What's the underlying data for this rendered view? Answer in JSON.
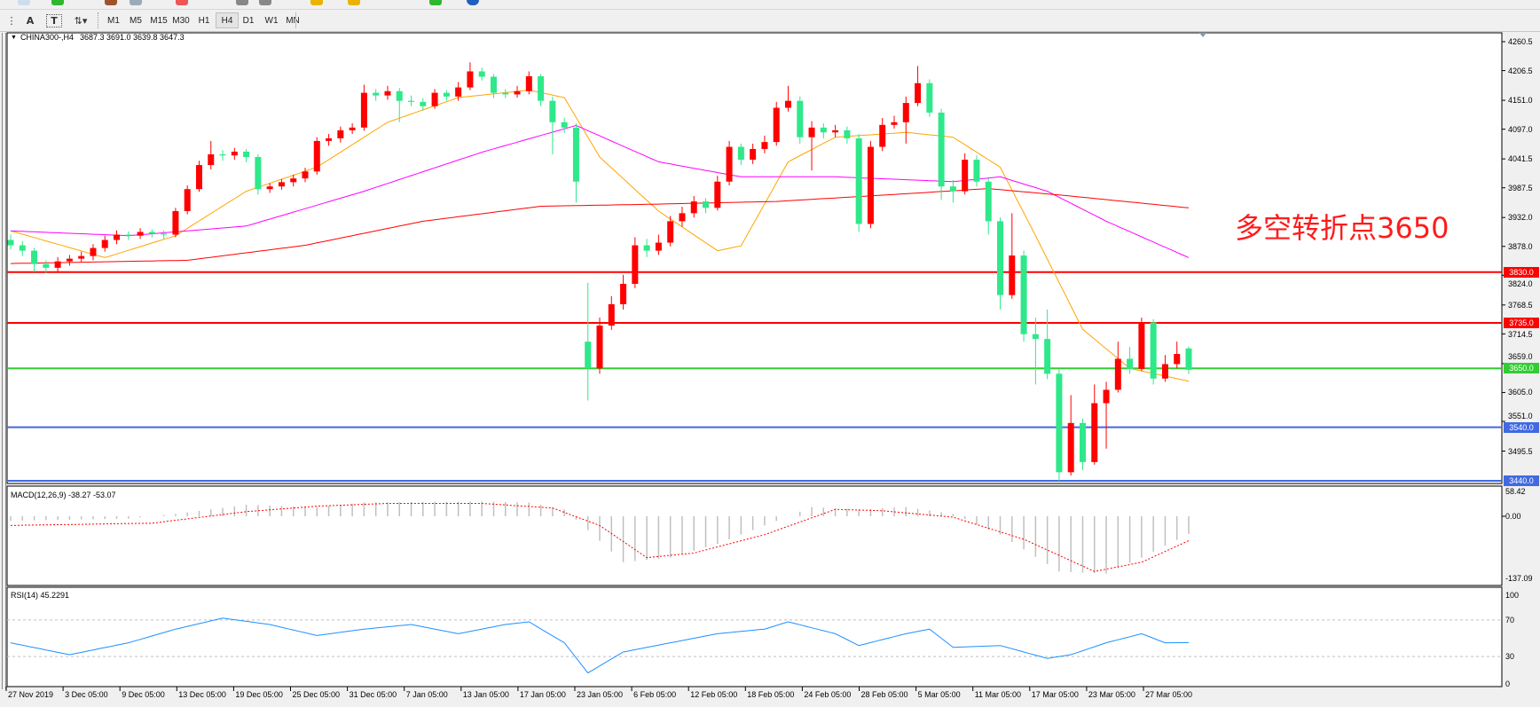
{
  "toolbar": {
    "tools": [
      {
        "name": "period-separator-icon",
        "glyph": "⋮"
      },
      {
        "name": "text-tool-icon",
        "glyph": "A"
      },
      {
        "name": "text-label-tool-icon",
        "glyph": "T"
      },
      {
        "name": "arrows-tool-icon",
        "glyph": "⇅▾"
      }
    ],
    "timeframes": [
      "M1",
      "M5",
      "M15",
      "M30",
      "H1",
      "H4",
      "D1",
      "W1",
      "MN"
    ],
    "active_timeframe": "H4"
  },
  "header": {
    "symbol": "CHINA300-,H4",
    "ohlc": "3687.3 3691.0 3639.8 3647.3"
  },
  "annotation": "多空转折点3650",
  "price_axis": [
    "4260.5",
    "4206.5",
    "4151.0",
    "4097.0",
    "4041.5",
    "3987.5",
    "3932.0",
    "3878.0",
    "3824.0",
    "3768.5",
    "3714.5",
    "3659.0",
    "3605.0",
    "3551.0",
    "3495.5"
  ],
  "levels": [
    {
      "label": "3830.0",
      "value": 3830,
      "color": "#ff0000"
    },
    {
      "label": "3735.0",
      "value": 3735,
      "color": "#ff0000"
    },
    {
      "label": "3650.0",
      "value": 3650,
      "color": "#32cd32"
    },
    {
      "label": "3540.0",
      "value": 3540,
      "color": "#4169e1"
    },
    {
      "label": "3440.0",
      "value": 3440,
      "color": "#4169e1"
    }
  ],
  "macd": {
    "label": "MACD(12,26,9) -38.27 -53.07",
    "axis": [
      "58.42",
      "0.00",
      "-137.09"
    ]
  },
  "rsi": {
    "label": "RSI(14) 45.2291",
    "axis": [
      "100",
      "70",
      "30",
      "0"
    ]
  },
  "time_axis": [
    "27 Nov 2019",
    "3 Dec 05:00",
    "9 Dec 05:00",
    "13 Dec 05:00",
    "19 Dec 05:00",
    "25 Dec 05:00",
    "31 Dec 05:00",
    "7 Jan 05:00",
    "13 Jan 05:00",
    "17 Jan 05:00",
    "23 Jan 05:00",
    "6 Feb 05:00",
    "12 Feb 05:00",
    "18 Feb 05:00",
    "24 Feb 05:00",
    "28 Feb 05:00",
    "5 Mar 05:00",
    "11 Mar 05:00",
    "17 Mar 05:00",
    "23 Mar 05:00",
    "27 Mar 05:00"
  ],
  "colors": {
    "bull": "#ff0000",
    "bear": "#2ee88a",
    "ma_fast": "#ffa500",
    "ma_mid": "#ff00ff",
    "ma_slow": "#ff0000",
    "rsi": "#1e90ff",
    "macd_hist": "#c0c0c0",
    "macd_signal": "#ff0000"
  },
  "chart_data": {
    "type": "candlestick",
    "price_range": [
      3440,
      4260.5
    ],
    "candles_ohlc": [
      [
        3890,
        3900,
        3872,
        3880
      ],
      [
        3880,
        3888,
        3860,
        3870
      ],
      [
        3870,
        3875,
        3830,
        3845
      ],
      [
        3845,
        3852,
        3828,
        3838
      ],
      [
        3838,
        3858,
        3830,
        3850
      ],
      [
        3850,
        3862,
        3842,
        3855
      ],
      [
        3855,
        3868,
        3848,
        3860
      ],
      [
        3860,
        3882,
        3852,
        3875
      ],
      [
        3875,
        3898,
        3868,
        3890
      ],
      [
        3890,
        3908,
        3882,
        3900
      ],
      [
        3900,
        3906,
        3890,
        3898
      ],
      [
        3898,
        3912,
        3892,
        3905
      ],
      [
        3905,
        3910,
        3895,
        3902
      ],
      [
        3902,
        3908,
        3892,
        3900
      ],
      [
        3900,
        3950,
        3895,
        3944
      ],
      [
        3944,
        3992,
        3938,
        3985
      ],
      [
        3985,
        4038,
        3980,
        4030
      ],
      [
        4030,
        4075,
        4022,
        4050
      ],
      [
        4050,
        4058,
        4038,
        4048
      ],
      [
        4048,
        4062,
        4040,
        4055
      ],
      [
        4055,
        4060,
        4035,
        4045
      ],
      [
        4045,
        4050,
        3975,
        3985
      ],
      [
        3985,
        3996,
        3978,
        3990
      ],
      [
        3990,
        4004,
        3984,
        3998
      ],
      [
        3998,
        4012,
        3990,
        4005
      ],
      [
        4005,
        4025,
        3998,
        4018
      ],
      [
        4018,
        4082,
        4012,
        4075
      ],
      [
        4075,
        4088,
        4066,
        4080
      ],
      [
        4080,
        4102,
        4072,
        4095
      ],
      [
        4095,
        4108,
        4088,
        4100
      ],
      [
        4100,
        4180,
        4094,
        4165
      ],
      [
        4165,
        4172,
        4150,
        4160
      ],
      [
        4160,
        4178,
        4152,
        4168
      ],
      [
        4168,
        4174,
        4110,
        4150
      ],
      [
        4150,
        4160,
        4140,
        4148
      ],
      [
        4148,
        4155,
        4132,
        4140
      ],
      [
        4140,
        4172,
        4135,
        4165
      ],
      [
        4165,
        4170,
        4150,
        4158
      ],
      [
        4158,
        4185,
        4150,
        4175
      ],
      [
        4175,
        4222,
        4170,
        4205
      ],
      [
        4205,
        4212,
        4188,
        4195
      ],
      [
        4195,
        4200,
        4155,
        4165
      ],
      [
        4165,
        4172,
        4155,
        4162
      ],
      [
        4162,
        4178,
        4156,
        4168
      ],
      [
        4168,
        4205,
        4162,
        4196
      ],
      [
        4196,
        4200,
        4140,
        4150
      ],
      [
        4150,
        4158,
        4050,
        4110
      ],
      [
        4110,
        4118,
        4090,
        4100
      ],
      [
        4100,
        4108,
        3960,
        3999
      ],
      [
        3700,
        3810,
        3590,
        3650
      ],
      [
        3650,
        3745,
        3640,
        3730
      ],
      [
        3730,
        3785,
        3722,
        3770
      ],
      [
        3770,
        3825,
        3760,
        3808
      ],
      [
        3808,
        3895,
        3800,
        3880
      ],
      [
        3880,
        3892,
        3858,
        3870
      ],
      [
        3870,
        3900,
        3862,
        3885
      ],
      [
        3885,
        3935,
        3878,
        3925
      ],
      [
        3925,
        3952,
        3915,
        3940
      ],
      [
        3940,
        3972,
        3932,
        3962
      ],
      [
        3962,
        3968,
        3940,
        3950
      ],
      [
        3950,
        4010,
        3945,
        3999
      ],
      [
        3999,
        4075,
        3992,
        4064
      ],
      [
        4064,
        4070,
        4030,
        4040
      ],
      [
        4040,
        4070,
        4032,
        4060
      ],
      [
        4060,
        4085,
        4052,
        4073
      ],
      [
        4073,
        4148,
        4066,
        4137
      ],
      [
        4137,
        4178,
        4130,
        4150
      ],
      [
        4150,
        4158,
        4070,
        4082
      ],
      [
        4082,
        4112,
        4020,
        4100
      ],
      [
        4100,
        4108,
        4080,
        4091
      ],
      [
        4091,
        4105,
        4082,
        4095
      ],
      [
        4095,
        4102,
        4070,
        4080
      ],
      [
        4080,
        4088,
        3905,
        3920
      ],
      [
        3920,
        4075,
        3912,
        4064
      ],
      [
        4064,
        4118,
        4056,
        4105
      ],
      [
        4105,
        4122,
        4098,
        4110
      ],
      [
        4110,
        4158,
        4070,
        4146
      ],
      [
        4146,
        4215,
        4140,
        4183
      ],
      [
        4183,
        4190,
        4120,
        4128
      ],
      [
        4128,
        4135,
        3965,
        3990
      ],
      [
        3990,
        4002,
        3960,
        3981
      ],
      [
        3981,
        4052,
        3975,
        4040
      ],
      [
        4040,
        4048,
        3990,
        3999
      ],
      [
        3999,
        4005,
        3900,
        3925
      ],
      [
        3925,
        3932,
        3760,
        3787
      ],
      [
        3787,
        3940,
        3780,
        3861
      ],
      [
        3861,
        3870,
        3700,
        3714
      ],
      [
        3714,
        3745,
        3620,
        3705
      ],
      [
        3705,
        3760,
        3630,
        3640
      ],
      [
        3640,
        3648,
        3440,
        3456
      ],
      [
        3456,
        3600,
        3450,
        3548
      ],
      [
        3548,
        3556,
        3460,
        3475
      ],
      [
        3475,
        3620,
        3470,
        3585
      ],
      [
        3585,
        3625,
        3500,
        3610
      ],
      [
        3610,
        3700,
        3605,
        3668
      ],
      [
        3668,
        3690,
        3640,
        3649
      ],
      [
        3649,
        3745,
        3645,
        3736
      ],
      [
        3736,
        3742,
        3620,
        3631
      ],
      [
        3631,
        3675,
        3625,
        3658
      ],
      [
        3658,
        3700,
        3650,
        3677
      ],
      [
        3687.3,
        3691.0,
        3639.8,
        3647.3
      ]
    ],
    "moving_averages": [
      {
        "color_key": "ma_fast",
        "points": [
          [
            0,
            3907
          ],
          [
            8,
            3857
          ],
          [
            14,
            3898
          ],
          [
            20,
            3981
          ],
          [
            26,
            4026
          ],
          [
            32,
            4110
          ],
          [
            38,
            4156
          ],
          [
            44,
            4170
          ],
          [
            47,
            4156
          ],
          [
            50,
            4045
          ],
          [
            55,
            3944
          ],
          [
            60,
            3870
          ],
          [
            62,
            3879
          ],
          [
            66,
            4036
          ],
          [
            70,
            4082
          ],
          [
            76,
            4091
          ],
          [
            80,
            4082
          ],
          [
            84,
            4026
          ],
          [
            87,
            3898
          ],
          [
            91,
            3723
          ],
          [
            95,
            3650
          ],
          [
            100,
            3626
          ]
        ]
      },
      {
        "color_key": "ma_mid",
        "points": [
          [
            0,
            3907
          ],
          [
            10,
            3898
          ],
          [
            20,
            3916
          ],
          [
            30,
            3981
          ],
          [
            40,
            4054
          ],
          [
            48,
            4104
          ],
          [
            55,
            4036
          ],
          [
            62,
            4008
          ],
          [
            70,
            4008
          ],
          [
            80,
            3999
          ],
          [
            84,
            4008
          ],
          [
            88,
            3981
          ],
          [
            93,
            3925
          ],
          [
            100,
            3857
          ]
        ]
      },
      {
        "color_key": "ma_slow",
        "points": [
          [
            0,
            3846
          ],
          [
            15,
            3852
          ],
          [
            25,
            3880
          ],
          [
            35,
            3925
          ],
          [
            45,
            3953
          ],
          [
            55,
            3957
          ],
          [
            65,
            3962
          ],
          [
            75,
            3975
          ],
          [
            83,
            3986
          ],
          [
            90,
            3972
          ],
          [
            100,
            3950
          ]
        ]
      }
    ],
    "macd": {
      "range": [
        -137.09,
        58.42
      ],
      "histogram": [
        [
          0,
          -10
        ],
        [
          10,
          -5
        ],
        [
          14,
          5
        ],
        [
          20,
          25
        ],
        [
          26,
          20
        ],
        [
          30,
          30
        ],
        [
          40,
          32
        ],
        [
          44,
          30
        ],
        [
          47,
          15
        ],
        [
          49,
          -30
        ],
        [
          52,
          -100
        ],
        [
          56,
          -90
        ],
        [
          60,
          -60
        ],
        [
          64,
          -20
        ],
        [
          68,
          20
        ],
        [
          72,
          15
        ],
        [
          76,
          20
        ],
        [
          80,
          5
        ],
        [
          84,
          -40
        ],
        [
          89,
          -120
        ],
        [
          93,
          -125
        ],
        [
          96,
          -90
        ],
        [
          100,
          -38.27
        ]
      ],
      "signal": [
        [
          0,
          -20
        ],
        [
          12,
          -15
        ],
        [
          20,
          10
        ],
        [
          26,
          22
        ],
        [
          32,
          28
        ],
        [
          40,
          28
        ],
        [
          46,
          18
        ],
        [
          50,
          -20
        ],
        [
          54,
          -90
        ],
        [
          58,
          -80
        ],
        [
          64,
          -40
        ],
        [
          70,
          15
        ],
        [
          74,
          12
        ],
        [
          80,
          -2
        ],
        [
          86,
          -50
        ],
        [
          92,
          -120
        ],
        [
          96,
          -100
        ],
        [
          100,
          -53.07
        ]
      ]
    },
    "rsi": {
      "range": [
        0,
        100
      ],
      "levels": [
        70,
        30
      ],
      "values": [
        [
          0,
          45
        ],
        [
          5,
          32
        ],
        [
          10,
          45
        ],
        [
          14,
          60
        ],
        [
          18,
          72
        ],
        [
          22,
          65
        ],
        [
          26,
          53
        ],
        [
          30,
          60
        ],
        [
          34,
          65
        ],
        [
          38,
          55
        ],
        [
          42,
          65
        ],
        [
          44,
          68
        ],
        [
          47,
          45
        ],
        [
          49,
          12
        ],
        [
          52,
          35
        ],
        [
          56,
          45
        ],
        [
          60,
          55
        ],
        [
          64,
          60
        ],
        [
          66,
          68
        ],
        [
          70,
          55
        ],
        [
          72,
          42
        ],
        [
          76,
          55
        ],
        [
          78,
          60
        ],
        [
          80,
          40
        ],
        [
          84,
          42
        ],
        [
          88,
          28
        ],
        [
          90,
          32
        ],
        [
          93,
          45
        ],
        [
          96,
          55
        ],
        [
          98,
          45
        ],
        [
          100,
          45.23
        ]
      ]
    }
  }
}
